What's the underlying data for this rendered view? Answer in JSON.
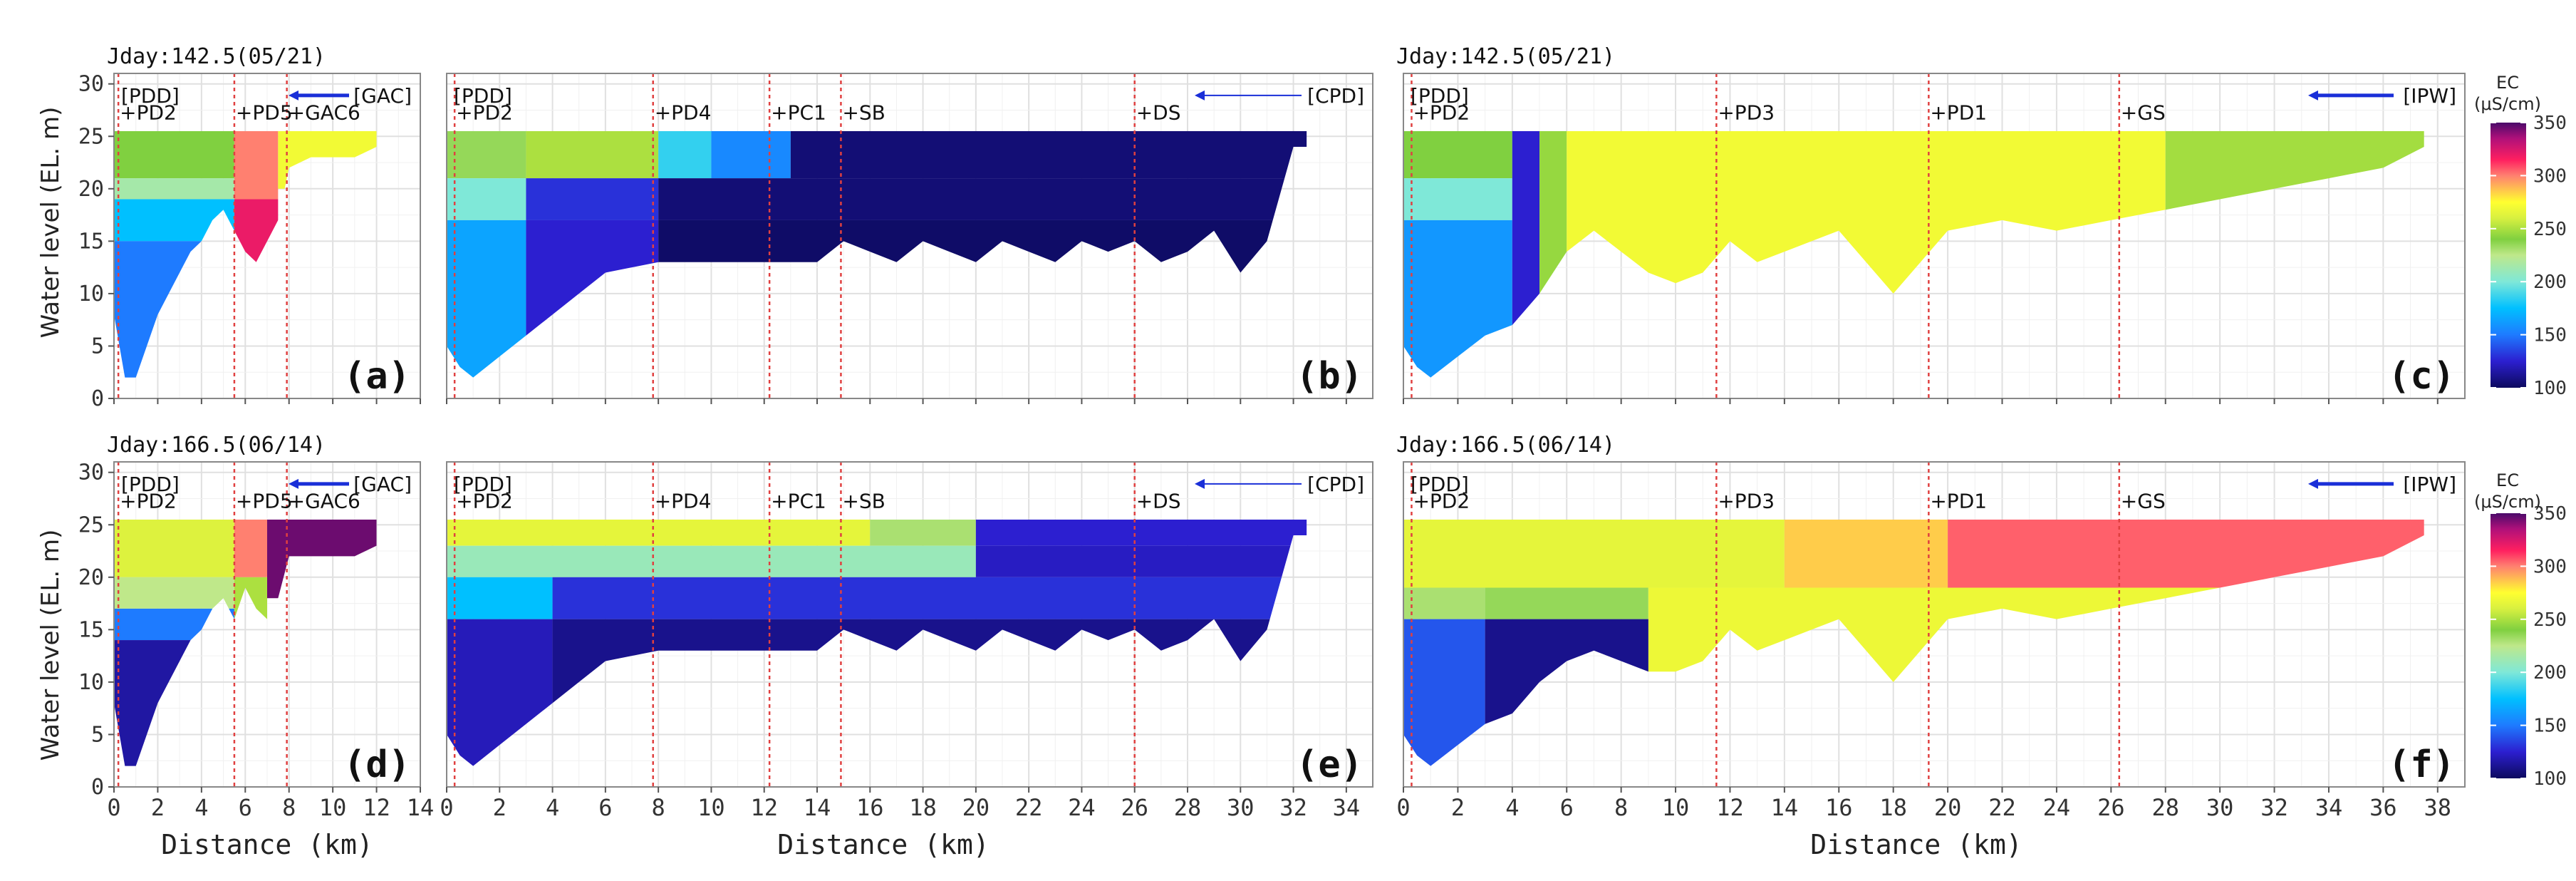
{
  "figure": {
    "y_axis_label": "Water level (EL. m)",
    "x_axis_label": "Distance (km)",
    "colorbar": {
      "title_line1": "EC",
      "title_line2": "(μS/cm)",
      "ticks": [
        100,
        150,
        200,
        250,
        300,
        350
      ],
      "range": [
        100,
        350
      ],
      "stops": [
        {
          "value": 100,
          "color": "#0d0a5e"
        },
        {
          "value": 125,
          "color": "#2c1fd0"
        },
        {
          "value": 150,
          "color": "#1e7bff"
        },
        {
          "value": 175,
          "color": "#00c0ff"
        },
        {
          "value": 200,
          "color": "#7fe8d8"
        },
        {
          "value": 225,
          "color": "#bfe88a"
        },
        {
          "value": 240,
          "color": "#80d040"
        },
        {
          "value": 260,
          "color": "#d8f040"
        },
        {
          "value": 275,
          "color": "#ffff30"
        },
        {
          "value": 300,
          "color": "#ff8070"
        },
        {
          "value": 315,
          "color": "#ff1f60"
        },
        {
          "value": 335,
          "color": "#b0107a"
        },
        {
          "value": 350,
          "color": "#4a0a6a"
        }
      ]
    }
  },
  "chart_data": [
    {
      "id": "a",
      "type": "heatmap",
      "panel_label": "(a)",
      "title": "Jday:142.5(05/21)",
      "branch_label": "[GAC]",
      "dam_label": "[PDD]",
      "xlim": [
        0,
        14
      ],
      "ylim": [
        0,
        31
      ],
      "xticks": [
        0,
        2,
        4,
        6,
        8,
        10,
        12,
        14
      ],
      "yticks": [
        0,
        5,
        10,
        15,
        20,
        25,
        30
      ],
      "stations": [
        {
          "name": "+PD2",
          "x": 0.2
        },
        {
          "name": "+PD5",
          "x": 5.5
        },
        {
          "name": "+GAC6",
          "x": 7.9
        }
      ],
      "profile": {
        "x": [
          0,
          0.5,
          1.0,
          1.5,
          2.0,
          2.5,
          3.0,
          3.5,
          4.0,
          4.5,
          5.0,
          5.5,
          6.0,
          6.5,
          7.0,
          7.5,
          8.0,
          9.0,
          10.0,
          11.0,
          12.0
        ],
        "bottom": [
          8,
          2,
          2,
          5,
          8,
          10,
          12,
          14,
          15,
          17,
          18,
          16,
          14,
          13,
          15,
          17,
          22,
          23,
          23,
          23,
          24
        ]
      },
      "surface": 25.5,
      "cells": [
        {
          "x": [
            0,
            5.5
          ],
          "y": [
            21,
            25.5
          ],
          "ec": 240
        },
        {
          "x": [
            0,
            5.5
          ],
          "y": [
            19,
            21
          ],
          "ec": 215
        },
        {
          "x": [
            0,
            5.5
          ],
          "y": [
            15,
            19
          ],
          "ec": 175
        },
        {
          "x": [
            0,
            5.5
          ],
          "y": [
            0,
            15
          ],
          "ec": 150
        },
        {
          "x": [
            5.5,
            7.5
          ],
          "y": [
            19,
            25.5
          ],
          "ec": 300
        },
        {
          "x": [
            5.5,
            7.5
          ],
          "y": [
            0,
            19
          ],
          "ec": 320
        },
        {
          "x": [
            7.5,
            12
          ],
          "y": [
            20,
            25.5
          ],
          "ec": 270
        }
      ]
    },
    {
      "id": "b",
      "type": "heatmap",
      "panel_label": "(b)",
      "title": "",
      "branch_label": "[CPD]",
      "dam_label": "[PDD]",
      "xlim": [
        0,
        35
      ],
      "ylim": [
        0,
        31
      ],
      "xticks": [
        0,
        2,
        4,
        6,
        8,
        10,
        12,
        14,
        16,
        18,
        20,
        22,
        24,
        26,
        28,
        30,
        32,
        34
      ],
      "yticks": [
        0,
        5,
        10,
        15,
        20,
        25,
        30
      ],
      "stations": [
        {
          "name": "+PD2",
          "x": 0.3
        },
        {
          "name": "+PD4",
          "x": 7.8
        },
        {
          "name": "+PC1",
          "x": 12.2
        },
        {
          "name": "+SB",
          "x": 14.9
        },
        {
          "name": "+DS",
          "x": 26.0
        }
      ],
      "profile": {
        "x": [
          0,
          0.5,
          1,
          2,
          3,
          4,
          5,
          6,
          8,
          10,
          12,
          14,
          15,
          16,
          17,
          18,
          19,
          20,
          21,
          22,
          23,
          24,
          25,
          26,
          27,
          28,
          29,
          30,
          31,
          32,
          32.5
        ],
        "bottom": [
          5,
          3,
          2,
          4,
          6,
          8,
          10,
          12,
          13,
          13,
          13,
          13,
          15,
          14,
          13,
          15,
          14,
          13,
          15,
          14,
          13,
          15,
          14,
          15,
          13,
          14,
          16,
          12,
          15,
          24,
          24
        ]
      },
      "surface": 25.5,
      "cells": [
        {
          "x": [
            0,
            3
          ],
          "y": [
            21,
            25.5
          ],
          "ec": 235
        },
        {
          "x": [
            3,
            8
          ],
          "y": [
            21,
            25.5
          ],
          "ec": 250
        },
        {
          "x": [
            8,
            10
          ],
          "y": [
            21,
            25.5
          ],
          "ec": 185
        },
        {
          "x": [
            10,
            13
          ],
          "y": [
            21,
            25.5
          ],
          "ec": 155
        },
        {
          "x": [
            13,
            33
          ],
          "y": [
            21,
            25.5
          ],
          "ec": 105
        },
        {
          "x": [
            0,
            3
          ],
          "y": [
            17,
            21
          ],
          "ec": 200
        },
        {
          "x": [
            3,
            8
          ],
          "y": [
            17,
            21
          ],
          "ec": 130
        },
        {
          "x": [
            8,
            33
          ],
          "y": [
            17,
            21
          ],
          "ec": 105
        },
        {
          "x": [
            0,
            3
          ],
          "y": [
            0,
            17
          ],
          "ec": 165
        },
        {
          "x": [
            3,
            8
          ],
          "y": [
            0,
            17
          ],
          "ec": 125
        },
        {
          "x": [
            8,
            33
          ],
          "y": [
            0,
            17
          ],
          "ec": 102
        }
      ]
    },
    {
      "id": "c",
      "type": "heatmap",
      "panel_label": "(c)",
      "title": "Jday:142.5(05/21)",
      "branch_label": "[IPW]",
      "dam_label": "[PDD]",
      "xlim": [
        0,
        39
      ],
      "ylim": [
        0,
        31
      ],
      "xticks": [
        0,
        2,
        4,
        6,
        8,
        10,
        12,
        14,
        16,
        18,
        20,
        22,
        24,
        26,
        28,
        30,
        32,
        34,
        36,
        38
      ],
      "yticks": [
        0,
        5,
        10,
        15,
        20,
        25,
        30
      ],
      "stations": [
        {
          "name": "+PD2",
          "x": 0.3
        },
        {
          "name": "+PD3",
          "x": 11.5
        },
        {
          "name": "+PD1",
          "x": 19.3
        },
        {
          "name": "+GS",
          "x": 26.3
        }
      ],
      "profile": {
        "x": [
          0,
          0.5,
          1,
          2,
          3,
          4,
          5,
          6,
          7,
          8,
          9,
          10,
          11,
          12,
          13,
          14,
          16,
          18,
          20,
          22,
          24,
          26,
          28,
          30,
          32,
          34,
          36,
          37.5
        ],
        "bottom": [
          5,
          3,
          2,
          4,
          6,
          7,
          10,
          14,
          16,
          14,
          12,
          11,
          12,
          15,
          13,
          14,
          16,
          10,
          16,
          17,
          16,
          17,
          18,
          19,
          20,
          21,
          22,
          24
        ]
      },
      "surface": 25.5,
      "cells": [
        {
          "x": [
            0,
            4
          ],
          "y": [
            21,
            25.5
          ],
          "ec": 240
        },
        {
          "x": [
            0,
            4
          ],
          "y": [
            17,
            21
          ],
          "ec": 200
        },
        {
          "x": [
            0,
            4
          ],
          "y": [
            0,
            17
          ],
          "ec": 160
        },
        {
          "x": [
            4,
            5
          ],
          "y": [
            0,
            25.5
          ],
          "ec": 125
        },
        {
          "x": [
            5,
            6
          ],
          "y": [
            0,
            25.5
          ],
          "ec": 245
        },
        {
          "x": [
            6,
            28
          ],
          "y": [
            0,
            25.5
          ],
          "ec": 270
        },
        {
          "x": [
            28,
            38
          ],
          "y": [
            0,
            25.5
          ],
          "ec": 248
        }
      ]
    },
    {
      "id": "d",
      "type": "heatmap",
      "panel_label": "(d)",
      "title": "Jday:166.5(06/14)",
      "branch_label": "[GAC]",
      "dam_label": "[PDD]",
      "xlim": [
        0,
        14
      ],
      "ylim": [
        0,
        31
      ],
      "xticks": [
        0,
        2,
        4,
        6,
        8,
        10,
        12,
        14
      ],
      "yticks": [
        0,
        5,
        10,
        15,
        20,
        25,
        30
      ],
      "stations": [
        {
          "name": "+PD2",
          "x": 0.2
        },
        {
          "name": "+PD5",
          "x": 5.5
        },
        {
          "name": "+GAC6",
          "x": 7.9
        }
      ],
      "profile": {
        "x": [
          0,
          0.5,
          1.0,
          1.5,
          2.0,
          2.5,
          3.0,
          3.5,
          4.0,
          4.5,
          5.0,
          5.5,
          6.0,
          6.5,
          7.0,
          7.5,
          8.0,
          9.0,
          10.0,
          11.0,
          12.0
        ],
        "bottom": [
          8,
          2,
          2,
          5,
          8,
          10,
          12,
          14,
          15,
          17,
          18,
          16,
          19,
          17,
          16,
          18,
          22,
          22,
          22,
          22,
          23
        ]
      },
      "surface": 25.5,
      "cells": [
        {
          "x": [
            0,
            5.5
          ],
          "y": [
            20,
            25.5
          ],
          "ec": 262
        },
        {
          "x": [
            0,
            5.5
          ],
          "y": [
            17,
            20
          ],
          "ec": 225
        },
        {
          "x": [
            0,
            5.5
          ],
          "y": [
            14,
            17
          ],
          "ec": 150
        },
        {
          "x": [
            0,
            5.5
          ],
          "y": [
            0,
            14
          ],
          "ec": 115
        },
        {
          "x": [
            5.5,
            7
          ],
          "y": [
            20,
            25.5
          ],
          "ec": 300
        },
        {
          "x": [
            5.5,
            7
          ],
          "y": [
            0,
            20
          ],
          "ec": 250
        },
        {
          "x": [
            7,
            12
          ],
          "y": [
            18,
            25.5
          ],
          "ec": 345
        }
      ]
    },
    {
      "id": "e",
      "type": "heatmap",
      "panel_label": "(e)",
      "title": "",
      "branch_label": "[CPD]",
      "dam_label": "[PDD]",
      "xlim": [
        0,
        35
      ],
      "ylim": [
        0,
        31
      ],
      "xticks": [
        0,
        2,
        4,
        6,
        8,
        10,
        12,
        14,
        16,
        18,
        20,
        22,
        24,
        26,
        28,
        30,
        32,
        34
      ],
      "yticks": [
        0,
        5,
        10,
        15,
        20,
        25,
        30
      ],
      "stations": [
        {
          "name": "+PD2",
          "x": 0.3
        },
        {
          "name": "+PD4",
          "x": 7.8
        },
        {
          "name": "+PC1",
          "x": 12.2
        },
        {
          "name": "+SB",
          "x": 14.9
        },
        {
          "name": "+DS",
          "x": 26.0
        }
      ],
      "profile": {
        "x": [
          0,
          0.5,
          1,
          2,
          3,
          4,
          5,
          6,
          8,
          10,
          12,
          14,
          15,
          16,
          17,
          18,
          19,
          20,
          21,
          22,
          23,
          24,
          25,
          26,
          27,
          28,
          29,
          30,
          31,
          32,
          32.5
        ],
        "bottom": [
          5,
          3,
          2,
          4,
          6,
          8,
          10,
          12,
          13,
          13,
          13,
          13,
          15,
          14,
          13,
          15,
          14,
          13,
          15,
          14,
          13,
          15,
          14,
          15,
          13,
          14,
          16,
          12,
          15,
          24,
          24
        ]
      },
      "surface": 25.5,
      "cells": [
        {
          "x": [
            0,
            16
          ],
          "y": [
            23,
            25.5
          ],
          "ec": 265
        },
        {
          "x": [
            16,
            20
          ],
          "y": [
            23,
            25.5
          ],
          "ec": 230
        },
        {
          "x": [
            20,
            33
          ],
          "y": [
            23,
            25.5
          ],
          "ec": 125
        },
        {
          "x": [
            0,
            20
          ],
          "y": [
            20,
            23
          ],
          "ec": 210
        },
        {
          "x": [
            20,
            33
          ],
          "y": [
            20,
            23
          ],
          "ec": 122
        },
        {
          "x": [
            0,
            4
          ],
          "y": [
            16,
            20
          ],
          "ec": 175
        },
        {
          "x": [
            4,
            33
          ],
          "y": [
            16,
            20
          ],
          "ec": 130
        },
        {
          "x": [
            0,
            4
          ],
          "y": [
            0,
            16
          ],
          "ec": 120
        },
        {
          "x": [
            4,
            33
          ],
          "y": [
            0,
            16
          ],
          "ec": 110
        }
      ]
    },
    {
      "id": "f",
      "type": "heatmap",
      "panel_label": "(f)",
      "title": "Jday:166.5(06/14)",
      "branch_label": "[IPW]",
      "dam_label": "[PDD]",
      "xlim": [
        0,
        39
      ],
      "ylim": [
        0,
        31
      ],
      "xticks": [
        0,
        2,
        4,
        6,
        8,
        10,
        12,
        14,
        16,
        18,
        20,
        22,
        24,
        26,
        28,
        30,
        32,
        34,
        36,
        38
      ],
      "yticks": [
        0,
        5,
        10,
        15,
        20,
        25,
        30
      ],
      "stations": [
        {
          "name": "+PD2",
          "x": 0.3
        },
        {
          "name": "+PD3",
          "x": 11.5
        },
        {
          "name": "+PD1",
          "x": 19.3
        },
        {
          "name": "+GS",
          "x": 26.3
        }
      ],
      "profile": {
        "x": [
          0,
          0.5,
          1,
          2,
          3,
          4,
          5,
          6,
          7,
          8,
          9,
          10,
          11,
          12,
          13,
          14,
          16,
          18,
          20,
          22,
          24,
          26,
          28,
          30,
          32,
          34,
          36,
          37.5
        ],
        "bottom": [
          5,
          3,
          2,
          4,
          6,
          7,
          10,
          12,
          13,
          12,
          11,
          11,
          12,
          15,
          13,
          14,
          16,
          10,
          16,
          17,
          16,
          17,
          18,
          19,
          20,
          21,
          22,
          24
        ]
      },
      "surface": 25.5,
      "cells": [
        {
          "x": [
            0,
            14
          ],
          "y": [
            19,
            25.5
          ],
          "ec": 265
        },
        {
          "x": [
            14,
            20
          ],
          "y": [
            19,
            25.5
          ],
          "ec": 285
        },
        {
          "x": [
            20,
            38
          ],
          "y": [
            19,
            25.5
          ],
          "ec": 305
        },
        {
          "x": [
            0,
            3
          ],
          "y": [
            16,
            19
          ],
          "ec": 230
        },
        {
          "x": [
            3,
            9
          ],
          "y": [
            16,
            19
          ],
          "ec": 235
        },
        {
          "x": [
            9,
            38
          ],
          "y": [
            0,
            19
          ],
          "ec": 268
        },
        {
          "x": [
            0,
            3
          ],
          "y": [
            0,
            16
          ],
          "ec": 140
        },
        {
          "x": [
            3,
            9
          ],
          "y": [
            0,
            16
          ],
          "ec": 110
        }
      ]
    }
  ]
}
